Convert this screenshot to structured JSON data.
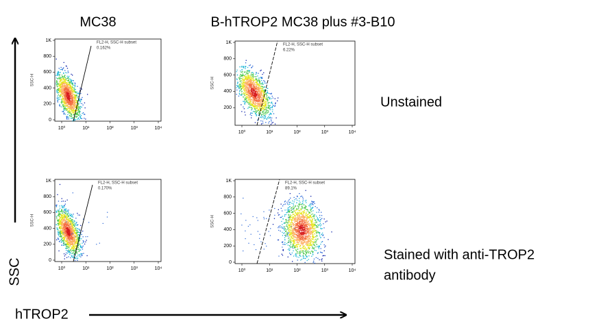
{
  "columns": [
    "MC38",
    "B-hTROP2 MC38 plus #3-B10"
  ],
  "rows": [
    [
      "Unstained"
    ],
    [
      "Stained with anti-TROP2",
      "antibody"
    ]
  ],
  "axis_y": "SSC",
  "axis_x": "hTROP2",
  "panels": [
    {
      "y_label": "SSC-H",
      "gate_label": "FL2-H, SSC-H subset",
      "percent": "0.162%",
      "y_ticks": [
        "1K",
        "800",
        "600",
        "400",
        "200",
        "0"
      ],
      "x_ticks": [
        "10⁰",
        "10¹",
        "10²",
        "10³",
        "10⁴"
      ]
    },
    {
      "y_label": "SSC-H",
      "gate_label": "FL2-H, SSC-H subset",
      "percent": "6.22%",
      "y_ticks": [
        "1K",
        "800",
        "600",
        "400",
        "200"
      ],
      "x_ticks": [
        "10⁰",
        "10¹",
        "10²",
        "10³",
        "10⁴"
      ]
    },
    {
      "y_label": "SSC-H",
      "gate_label": "FL2-H, SSC-H subset",
      "percent": "0.170%",
      "y_ticks": [
        "1K",
        "800",
        "600",
        "400",
        "200",
        "0"
      ],
      "x_ticks": [
        "10⁰",
        "10¹",
        "10²",
        "10³",
        "10⁴"
      ]
    },
    {
      "y_label": "SSC-H",
      "gate_label": "FL2-H, SSC-H subset",
      "percent": "89.1%",
      "y_ticks": [
        "1K",
        "800",
        "600",
        "400",
        "200",
        "0"
      ],
      "x_ticks": [
        "10⁰",
        "10¹",
        "10²",
        "10³",
        "10⁴"
      ]
    }
  ]
}
